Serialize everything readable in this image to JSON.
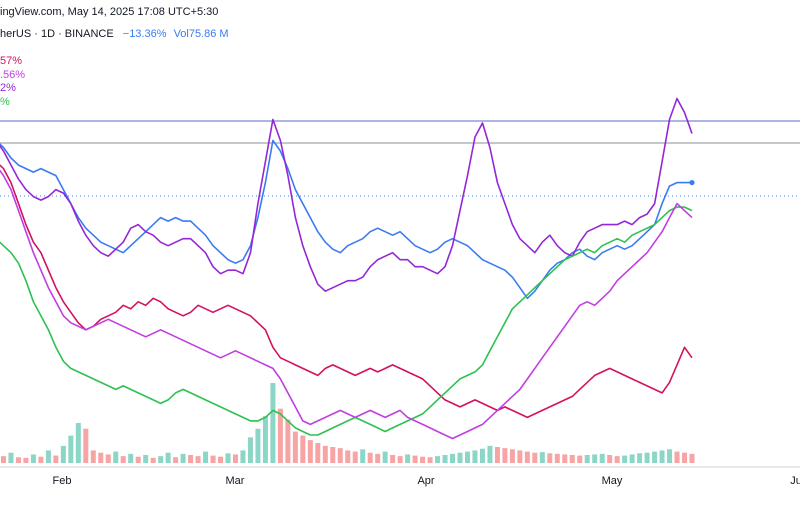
{
  "header": {
    "source_line": "ingView.com, May 14, 2025 17:08 UTC+5:30",
    "symbol": "herUS · 1D · BINANCE",
    "change": "−13.36%",
    "volume": "Vol75.86 M"
  },
  "legend": [
    "57%",
    ".56%",
    "2%",
    "%"
  ],
  "colors": {
    "blue": "#3a7bf2",
    "purple": "#9327d8",
    "crimson": "#d3115f",
    "green": "#2ec14f",
    "violet": "#c13ee0",
    "vol_up": "#7fd1c1",
    "vol_down": "#f59a9a",
    "header_change": "#3a7bf2"
  },
  "chart_data": {
    "type": "line",
    "x_axis": {
      "ticks": [
        "Feb",
        "Mar",
        "Apr",
        "May",
        "Ju"
      ]
    },
    "series": [
      {
        "color": "#3a7bf2",
        "marker_last": true,
        "values": [
          0.92,
          0.9,
          0.87,
          0.85,
          0.84,
          0.83,
          0.84,
          0.83,
          0.82,
          0.78,
          0.74,
          0.7,
          0.67,
          0.65,
          0.63,
          0.62,
          0.61,
          0.6,
          0.62,
          0.64,
          0.66,
          0.68,
          0.7,
          0.69,
          0.7,
          0.69,
          0.69,
          0.67,
          0.65,
          0.62,
          0.6,
          0.58,
          0.57,
          0.58,
          0.62,
          0.7,
          0.8,
          0.92,
          0.89,
          0.84,
          0.78,
          0.74,
          0.7,
          0.66,
          0.63,
          0.61,
          0.6,
          0.62,
          0.63,
          0.64,
          0.66,
          0.67,
          0.66,
          0.65,
          0.66,
          0.64,
          0.62,
          0.61,
          0.6,
          0.61,
          0.63,
          0.64,
          0.63,
          0.62,
          0.6,
          0.58,
          0.57,
          0.56,
          0.55,
          0.53,
          0.5,
          0.47,
          0.49,
          0.52,
          0.55,
          0.57,
          0.58,
          0.6,
          0.61,
          0.59,
          0.58,
          0.6,
          0.61,
          0.62,
          0.61,
          0.62,
          0.64,
          0.66,
          0.68,
          0.74,
          0.79,
          0.8,
          0.8,
          0.8
        ]
      },
      {
        "color": "#9327d8",
        "values": [
          0.92,
          0.89,
          0.85,
          0.81,
          0.78,
          0.76,
          0.75,
          0.76,
          0.78,
          0.77,
          0.74,
          0.69,
          0.65,
          0.62,
          0.6,
          0.59,
          0.61,
          0.63,
          0.67,
          0.68,
          0.66,
          0.65,
          0.63,
          0.62,
          0.63,
          0.64,
          0.64,
          0.62,
          0.6,
          0.56,
          0.54,
          0.55,
          0.55,
          0.54,
          0.6,
          0.74,
          0.86,
          0.98,
          0.92,
          0.82,
          0.7,
          0.62,
          0.56,
          0.51,
          0.49,
          0.5,
          0.51,
          0.52,
          0.52,
          0.53,
          0.56,
          0.58,
          0.59,
          0.6,
          0.58,
          0.58,
          0.56,
          0.56,
          0.55,
          0.54,
          0.56,
          0.62,
          0.72,
          0.82,
          0.93,
          0.97,
          0.9,
          0.8,
          0.74,
          0.68,
          0.64,
          0.62,
          0.6,
          0.63,
          0.65,
          0.62,
          0.6,
          0.59,
          0.63,
          0.66,
          0.67,
          0.68,
          0.68,
          0.68,
          0.69,
          0.68,
          0.7,
          0.71,
          0.74,
          0.86,
          0.98,
          1.04,
          1.0,
          0.94
        ]
      },
      {
        "color": "#d3115f",
        "values": [
          0.86,
          0.84,
          0.8,
          0.74,
          0.68,
          0.63,
          0.6,
          0.55,
          0.5,
          0.46,
          0.43,
          0.4,
          0.38,
          0.39,
          0.41,
          0.42,
          0.43,
          0.45,
          0.44,
          0.46,
          0.45,
          0.47,
          0.46,
          0.44,
          0.43,
          0.42,
          0.43,
          0.45,
          0.44,
          0.43,
          0.44,
          0.45,
          0.44,
          0.43,
          0.42,
          0.4,
          0.38,
          0.33,
          0.3,
          0.29,
          0.28,
          0.27,
          0.26,
          0.25,
          0.27,
          0.28,
          0.27,
          0.26,
          0.25,
          0.26,
          0.27,
          0.26,
          0.27,
          0.28,
          0.27,
          0.26,
          0.25,
          0.24,
          0.22,
          0.2,
          0.18,
          0.17,
          0.16,
          0.17,
          0.18,
          0.17,
          0.16,
          0.15,
          0.16,
          0.15,
          0.14,
          0.13,
          0.14,
          0.15,
          0.16,
          0.17,
          0.18,
          0.19,
          0.21,
          0.23,
          0.25,
          0.26,
          0.27,
          0.26,
          0.25,
          0.24,
          0.23,
          0.22,
          0.21,
          0.2,
          0.23,
          0.28,
          0.33,
          0.3
        ]
      },
      {
        "color": "#2ec14f",
        "values": [
          0.64,
          0.62,
          0.6,
          0.57,
          0.52,
          0.46,
          0.42,
          0.38,
          0.33,
          0.29,
          0.27,
          0.26,
          0.25,
          0.24,
          0.23,
          0.22,
          0.21,
          0.22,
          0.21,
          0.2,
          0.19,
          0.18,
          0.17,
          0.18,
          0.2,
          0.21,
          0.2,
          0.19,
          0.18,
          0.17,
          0.16,
          0.15,
          0.14,
          0.13,
          0.12,
          0.12,
          0.13,
          0.15,
          0.14,
          0.12,
          0.1,
          0.09,
          0.08,
          0.08,
          0.09,
          0.1,
          0.11,
          0.12,
          0.13,
          0.12,
          0.11,
          0.1,
          0.09,
          0.1,
          0.11,
          0.12,
          0.13,
          0.14,
          0.16,
          0.18,
          0.2,
          0.22,
          0.24,
          0.25,
          0.26,
          0.28,
          0.32,
          0.36,
          0.4,
          0.44,
          0.46,
          0.48,
          0.5,
          0.52,
          0.54,
          0.56,
          0.58,
          0.59,
          0.6,
          0.61,
          0.6,
          0.62,
          0.63,
          0.64,
          0.63,
          0.65,
          0.66,
          0.67,
          0.68,
          0.7,
          0.72,
          0.73,
          0.73,
          0.72
        ]
      },
      {
        "color": "#c13ee0",
        "values": [
          0.85,
          0.82,
          0.78,
          0.72,
          0.66,
          0.6,
          0.55,
          0.5,
          0.46,
          0.42,
          0.4,
          0.39,
          0.38,
          0.39,
          0.4,
          0.41,
          0.4,
          0.39,
          0.38,
          0.37,
          0.36,
          0.37,
          0.38,
          0.37,
          0.36,
          0.35,
          0.34,
          0.33,
          0.32,
          0.31,
          0.3,
          0.31,
          0.32,
          0.31,
          0.3,
          0.29,
          0.28,
          0.27,
          0.24,
          0.2,
          0.16,
          0.12,
          0.11,
          0.12,
          0.13,
          0.14,
          0.15,
          0.14,
          0.13,
          0.14,
          0.15,
          0.14,
          0.13,
          0.14,
          0.15,
          0.13,
          0.12,
          0.11,
          0.1,
          0.09,
          0.08,
          0.07,
          0.08,
          0.09,
          0.1,
          0.11,
          0.13,
          0.15,
          0.17,
          0.19,
          0.21,
          0.24,
          0.27,
          0.3,
          0.33,
          0.36,
          0.39,
          0.42,
          0.45,
          0.46,
          0.45,
          0.47,
          0.49,
          0.52,
          0.54,
          0.56,
          0.58,
          0.6,
          0.63,
          0.66,
          0.7,
          0.74,
          0.72,
          0.7
        ]
      }
    ],
    "volume": [
      14,
      12,
      18,
      10,
      9,
      15,
      11,
      22,
      13,
      30,
      48,
      70,
      60,
      22,
      18,
      15,
      20,
      12,
      16,
      11,
      14,
      9,
      12,
      18,
      10,
      16,
      14,
      12,
      20,
      13,
      11,
      17,
      15,
      22,
      45,
      60,
      82,
      140,
      95,
      76,
      55,
      48,
      40,
      35,
      30,
      28,
      26,
      22,
      20,
      24,
      18,
      16,
      20,
      14,
      12,
      15,
      13,
      11,
      10,
      12,
      14,
      16,
      18,
      20,
      22,
      25,
      30,
      28,
      26,
      24,
      22,
      20,
      18,
      19,
      17,
      16,
      15,
      14,
      13,
      14,
      15,
      16,
      14,
      12,
      13,
      15,
      17,
      18,
      20,
      22,
      24,
      20,
      18,
      16
    ]
  }
}
